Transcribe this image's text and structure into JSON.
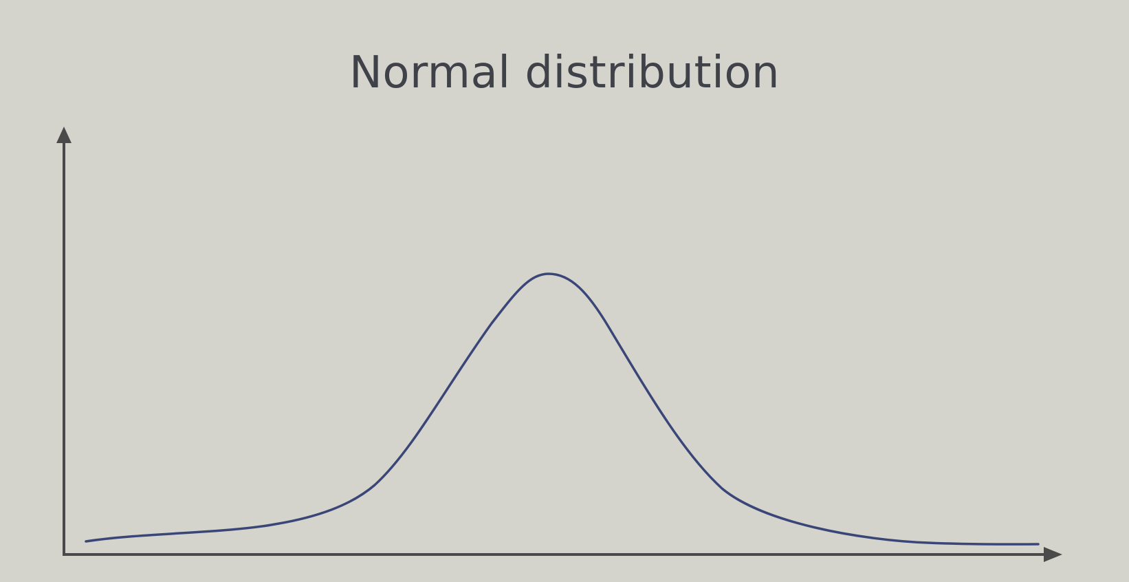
{
  "slide": {
    "title": "Normal distribution"
  },
  "colors": {
    "background": "#d5d4cc",
    "title_text": "#3f4349",
    "axes": "#4a4a4a",
    "curve": "#3a4678"
  },
  "diagram": {
    "type": "bell-curve",
    "axes": [
      "y-axis-arrow",
      "x-axis-arrow"
    ],
    "curve_shape": "symmetric-bell",
    "labels_printed": false
  }
}
